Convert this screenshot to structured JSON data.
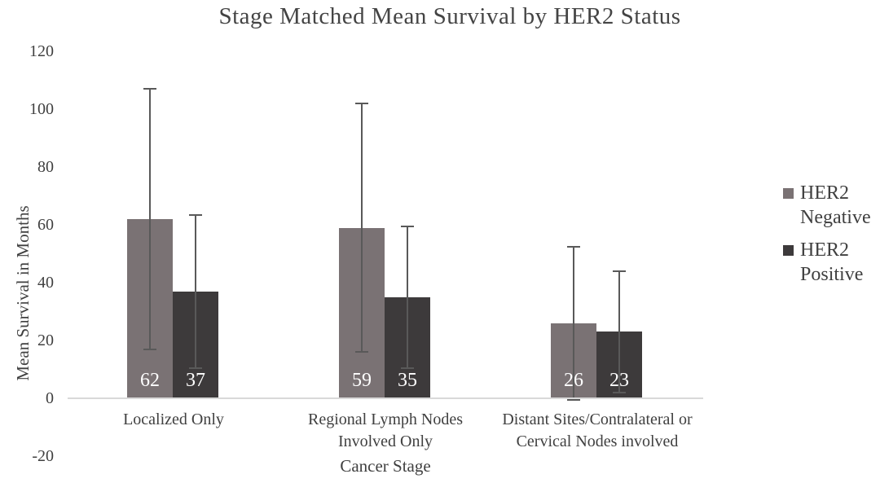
{
  "chart_data": {
    "type": "bar",
    "title": "Stage Matched Mean Survival by HER2 Status",
    "xlabel": "Cancer Stage",
    "ylabel": "Mean Survival in Months",
    "categories": [
      "Localized Only",
      "Regional Lymph Nodes\nInvolved Only",
      "Distant Sites/Contralateral or\nCervical Nodes involved"
    ],
    "series": [
      {
        "name": "HER2 Negative",
        "values": [
          62,
          59,
          26
        ],
        "error_plus_minus": [
          45,
          43,
          26.5
        ],
        "color": "#7a7274"
      },
      {
        "name": "HER2 Positive",
        "values": [
          37,
          35,
          23
        ],
        "error_plus_minus": [
          26.5,
          24.5,
          21
        ],
        "color": "#3d3a3b"
      }
    ],
    "yticks": [
      120,
      100,
      80,
      60,
      40,
      20,
      0,
      -20
    ],
    "ylim": [
      -20,
      120
    ],
    "grid": false,
    "legend_position": "right",
    "colors": {
      "error_bar": "#595959",
      "axis_line": "#d9d9d9",
      "text": "#404040",
      "title_text": "#444444",
      "value_label": "#ffffff",
      "background": "#ffffff"
    }
  }
}
